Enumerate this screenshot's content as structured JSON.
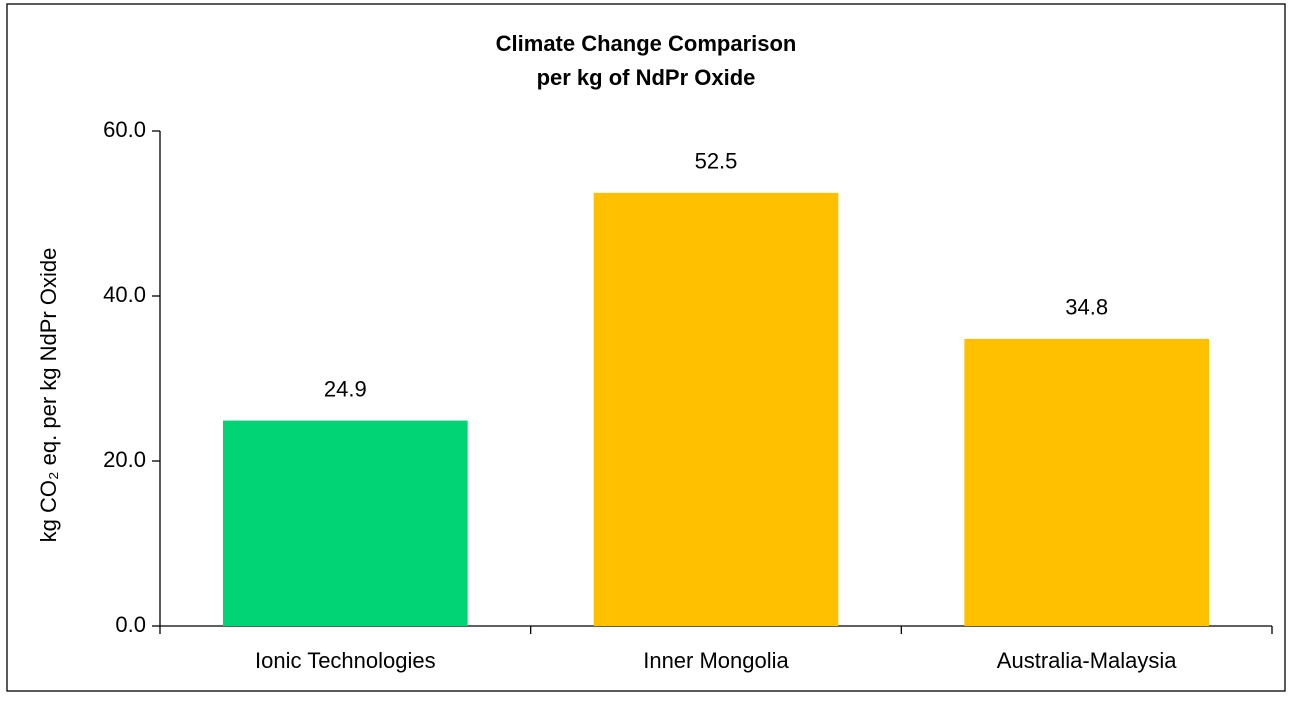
{
  "chart_data": {
    "type": "bar",
    "title": [
      "Climate Change Comparison",
      "per kg of NdPr Oxide"
    ],
    "ylabel": "kg CO₂ eq. per kg NdPr Oxide",
    "categories": [
      "Ionic Technologies",
      "Inner Mongolia",
      "Australia-Malaysia"
    ],
    "values": [
      24.9,
      52.5,
      34.8
    ],
    "colors": [
      "#00d474",
      "#ffc000",
      "#ffc000"
    ],
    "ylim": [
      0,
      60
    ],
    "yticks": [
      {
        "value": 0,
        "label": "0.0"
      },
      {
        "value": 20,
        "label": "20.0"
      },
      {
        "value": 40,
        "label": "40.0"
      },
      {
        "value": 60,
        "label": "60.0"
      }
    ],
    "grid": false
  }
}
